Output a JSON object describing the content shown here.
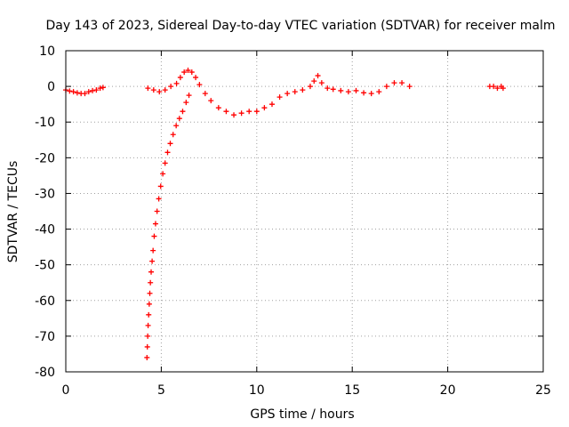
{
  "chart_data": {
    "type": "scatter",
    "title": "Day 143 of 2023, Sidereal Day-to-day VTEC variation (SDTVAR) for receiver malm",
    "xlabel": "GPS time / hours",
    "ylabel": "SDTVAR / TECUs",
    "xlim": [
      0,
      25
    ],
    "ylim": [
      -80,
      10
    ],
    "xticks": [
      0,
      5,
      10,
      15,
      20,
      25
    ],
    "yticks": [
      10,
      0,
      -10,
      -20,
      -30,
      -40,
      -50,
      -60,
      -70,
      -80
    ],
    "grid": true,
    "marker": "+",
    "color": "#ff0000",
    "series": [
      {
        "name": "SDTVAR",
        "x": [
          0.0,
          0.2,
          0.4,
          0.6,
          0.8,
          1.0,
          1.2,
          1.4,
          1.6,
          1.8,
          1.95,
          4.3,
          4.6,
          4.9,
          5.2,
          5.5,
          5.8,
          6.0,
          6.2,
          6.4,
          6.6,
          6.8,
          7.0,
          7.3,
          7.6,
          8.0,
          8.4,
          8.8,
          9.2,
          9.6,
          10.0,
          10.4,
          10.8,
          11.2,
          11.6,
          12.0,
          12.4,
          12.8,
          13.0,
          13.2,
          13.4,
          13.7,
          14.0,
          14.4,
          14.8,
          15.2,
          15.6,
          16.0,
          16.4,
          16.8,
          17.2,
          17.6,
          18.0,
          4.25,
          4.27,
          4.29,
          4.31,
          4.34,
          4.37,
          4.4,
          4.43,
          4.47,
          4.52,
          4.57,
          4.63,
          4.7,
          4.78,
          4.87,
          4.97,
          5.08,
          5.2,
          5.33,
          5.47,
          5.62,
          5.78,
          5.95,
          6.12,
          6.3,
          6.45,
          22.2,
          22.4,
          22.6,
          22.8,
          22.9
        ],
        "y": [
          -1,
          -1.3,
          -1.5,
          -1.8,
          -2,
          -2,
          -1.5,
          -1.2,
          -1,
          -0.5,
          -0.3,
          -0.5,
          -1,
          -1.5,
          -1,
          0,
          0.8,
          2.5,
          4,
          4.5,
          4,
          2.5,
          0.5,
          -2,
          -4,
          -6,
          -7,
          -8,
          -7.5,
          -7,
          -7,
          -6,
          -5,
          -3,
          -2,
          -1.5,
          -1,
          0,
          1.5,
          3,
          1,
          -0.5,
          -0.8,
          -1.2,
          -1.5,
          -1.2,
          -1.8,
          -2,
          -1.5,
          0,
          1,
          1,
          0,
          -76,
          -73,
          -70,
          -67,
          -64,
          -61,
          -58,
          -55,
          -52,
          -49,
          -46,
          -42,
          -38.5,
          -35,
          -31.5,
          -28,
          -24.5,
          -21.5,
          -18.5,
          -16,
          -13.5,
          -11,
          -9,
          -7,
          -4.5,
          -2.5,
          0,
          0,
          -0.5,
          0,
          -0.5
        ]
      }
    ]
  }
}
